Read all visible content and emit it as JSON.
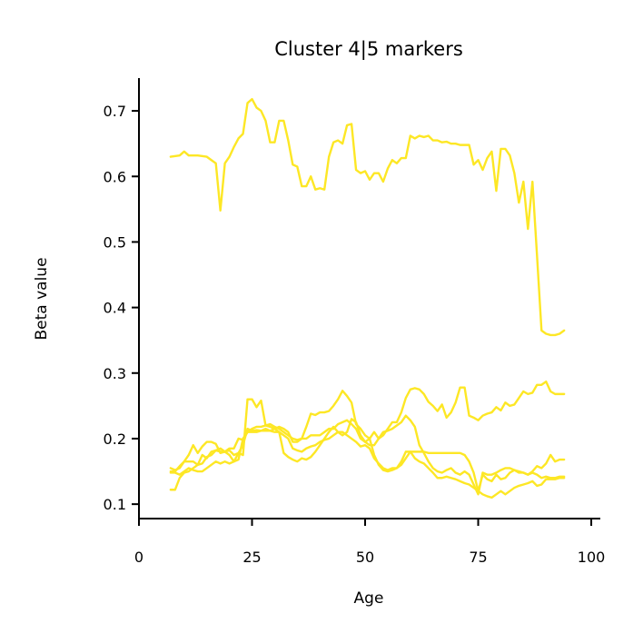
{
  "chart_data": {
    "type": "line",
    "title": "Cluster 4|5 markers",
    "xlabel": "Age",
    "ylabel": "Beta value",
    "xlim": [
      0,
      102
    ],
    "ylim": [
      0.078,
      0.75
    ],
    "xticks": [
      0,
      25,
      50,
      75,
      100
    ],
    "xtick_labels": [
      "0",
      "25",
      "50",
      "75",
      "100"
    ],
    "yticks": [
      0.1,
      0.2,
      0.3,
      0.4,
      0.5,
      0.6,
      0.7
    ],
    "ytick_labels": [
      "0.1",
      "0.2",
      "0.3",
      "0.4",
      "0.5",
      "0.6",
      "0.7"
    ],
    "grid": false,
    "line_color": "#fde725",
    "series": [
      {
        "x": [
          7,
          9,
          10,
          11,
          13,
          15,
          16,
          17,
          18,
          19,
          20,
          21,
          22,
          23,
          24,
          25,
          26,
          27,
          28,
          29,
          30,
          31,
          32,
          33,
          34,
          35,
          36,
          37,
          38,
          39,
          40,
          41,
          42,
          43,
          44,
          45,
          46,
          47,
          48,
          49,
          50,
          51,
          52,
          53,
          54,
          55,
          56,
          57,
          58,
          59,
          60,
          61,
          62,
          63,
          64,
          65,
          66,
          67,
          68,
          69,
          70,
          71,
          72,
          73,
          74,
          75,
          76,
          77,
          78,
          79,
          80,
          81,
          82,
          83,
          84,
          85,
          86,
          87,
          88,
          89,
          90,
          91,
          92,
          93,
          94
        ],
        "values": [
          0.63,
          0.632,
          0.638,
          0.632,
          0.632,
          0.63,
          0.625,
          0.62,
          0.548,
          0.62,
          0.63,
          0.645,
          0.658,
          0.665,
          0.712,
          0.718,
          0.705,
          0.7,
          0.685,
          0.652,
          0.652,
          0.685,
          0.685,
          0.655,
          0.618,
          0.615,
          0.585,
          0.585,
          0.6,
          0.58,
          0.582,
          0.58,
          0.63,
          0.652,
          0.655,
          0.65,
          0.678,
          0.68,
          0.61,
          0.605,
          0.608,
          0.595,
          0.605,
          0.605,
          0.592,
          0.612,
          0.625,
          0.62,
          0.628,
          0.628,
          0.662,
          0.658,
          0.662,
          0.66,
          0.662,
          0.655,
          0.655,
          0.652,
          0.653,
          0.65,
          0.65,
          0.648,
          0.648,
          0.648,
          0.618,
          0.625,
          0.61,
          0.628,
          0.638,
          0.578,
          0.642,
          0.642,
          0.632,
          0.605,
          0.56,
          0.592,
          0.52,
          0.592,
          0.48,
          0.365,
          0.36,
          0.358,
          0.358,
          0.36,
          0.365
        ]
      },
      {
        "x": [
          7,
          8,
          9,
          10,
          11,
          12,
          13,
          14,
          15,
          16,
          17,
          18,
          19,
          20,
          21,
          22,
          23,
          24,
          25,
          26,
          27,
          28,
          29,
          30,
          31,
          32,
          33,
          34,
          35,
          36,
          37,
          38,
          39,
          40,
          41,
          42,
          43,
          44,
          45,
          46,
          47,
          48,
          49,
          50,
          51,
          52,
          53,
          54,
          55,
          56,
          57,
          58,
          59,
          60,
          61,
          62,
          63,
          64,
          65,
          66,
          67,
          68,
          69,
          70,
          71,
          72,
          73,
          74,
          75,
          76,
          77,
          78,
          79,
          80,
          81,
          82,
          83,
          84,
          85,
          86,
          87,
          88,
          89,
          90,
          91,
          92,
          93,
          94
        ],
        "values": [
          0.155,
          0.152,
          0.155,
          0.165,
          0.175,
          0.19,
          0.178,
          0.188,
          0.195,
          0.195,
          0.192,
          0.178,
          0.18,
          0.175,
          0.165,
          0.178,
          0.175,
          0.26,
          0.26,
          0.248,
          0.258,
          0.22,
          0.222,
          0.218,
          0.215,
          0.21,
          0.205,
          0.2,
          0.198,
          0.2,
          0.218,
          0.238,
          0.236,
          0.24,
          0.24,
          0.242,
          0.25,
          0.26,
          0.273,
          0.265,
          0.255,
          0.222,
          0.215,
          0.205,
          0.2,
          0.21,
          0.2,
          0.205,
          0.215,
          0.225,
          0.225,
          0.24,
          0.262,
          0.275,
          0.277,
          0.275,
          0.268,
          0.256,
          0.25,
          0.242,
          0.252,
          0.232,
          0.24,
          0.255,
          0.278,
          0.278,
          0.235,
          0.232,
          0.228,
          0.235,
          0.238,
          0.24,
          0.248,
          0.243,
          0.255,
          0.25,
          0.252,
          0.262,
          0.272,
          0.268,
          0.27,
          0.282,
          0.282,
          0.287,
          0.272,
          0.268,
          0.268,
          0.268
        ]
      },
      {
        "x": [
          7,
          8,
          9,
          10,
          11,
          12,
          13,
          14,
          15,
          16,
          17,
          18,
          19,
          20,
          21,
          22,
          23,
          24,
          25,
          26,
          27,
          28,
          29,
          30,
          31,
          32,
          33,
          34,
          35,
          36,
          37,
          38,
          39,
          40,
          41,
          42,
          43,
          44,
          45,
          46,
          47,
          48,
          49,
          50,
          51,
          52,
          53,
          54,
          55,
          56,
          57,
          58,
          59,
          60,
          61,
          62,
          63,
          64,
          65,
          66,
          67,
          68,
          69,
          70,
          71,
          72,
          73,
          74,
          75,
          76,
          77,
          78,
          79,
          80,
          81,
          82,
          83,
          84,
          85,
          86,
          87,
          88,
          89,
          90,
          91,
          92,
          93,
          94
        ],
        "values": [
          0.122,
          0.122,
          0.14,
          0.148,
          0.15,
          0.155,
          0.16,
          0.175,
          0.17,
          0.18,
          0.182,
          0.185,
          0.18,
          0.185,
          0.185,
          0.2,
          0.198,
          0.21,
          0.215,
          0.218,
          0.218,
          0.22,
          0.218,
          0.215,
          0.21,
          0.178,
          0.172,
          0.168,
          0.165,
          0.17,
          0.168,
          0.172,
          0.18,
          0.19,
          0.2,
          0.21,
          0.218,
          0.21,
          0.205,
          0.21,
          0.23,
          0.225,
          0.205,
          0.195,
          0.2,
          0.175,
          0.16,
          0.152,
          0.15,
          0.152,
          0.155,
          0.165,
          0.18,
          0.18,
          0.18,
          0.18,
          0.18,
          0.178,
          0.178,
          0.178,
          0.178,
          0.178,
          0.178,
          0.178,
          0.178,
          0.175,
          0.165,
          0.148,
          0.12,
          0.145,
          0.138,
          0.135,
          0.145,
          0.138,
          0.14,
          0.148,
          0.152,
          0.148,
          0.148,
          0.145,
          0.15,
          0.158,
          0.155,
          0.162,
          0.175,
          0.165,
          0.168,
          0.168
        ]
      },
      {
        "x": [
          7,
          8,
          9,
          10,
          11,
          12,
          13,
          14,
          15,
          16,
          17,
          18,
          19,
          20,
          21,
          22,
          23,
          24,
          25,
          26,
          27,
          28,
          29,
          30,
          31,
          32,
          33,
          34,
          35,
          36,
          37,
          38,
          39,
          40,
          41,
          42,
          43,
          44,
          45,
          46,
          47,
          48,
          49,
          50,
          51,
          52,
          53,
          54,
          55,
          56,
          57,
          58,
          59,
          60,
          61,
          62,
          63,
          64,
          65,
          66,
          67,
          68,
          69,
          70,
          71,
          72,
          73,
          74,
          75,
          76,
          77,
          78,
          79,
          80,
          81,
          82,
          83,
          84,
          85,
          86,
          87,
          88,
          89,
          90,
          91,
          92,
          93,
          94
        ],
        "values": [
          0.15,
          0.15,
          0.158,
          0.165,
          0.165,
          0.165,
          0.16,
          0.162,
          0.172,
          0.175,
          0.182,
          0.18,
          0.18,
          0.182,
          0.175,
          0.178,
          0.19,
          0.215,
          0.212,
          0.213,
          0.212,
          0.215,
          0.212,
          0.215,
          0.218,
          0.215,
          0.21,
          0.195,
          0.195,
          0.2,
          0.2,
          0.205,
          0.205,
          0.205,
          0.21,
          0.215,
          0.215,
          0.222,
          0.225,
          0.228,
          0.222,
          0.215,
          0.2,
          0.195,
          0.19,
          0.19,
          0.2,
          0.21,
          0.212,
          0.215,
          0.22,
          0.225,
          0.235,
          0.228,
          0.218,
          0.19,
          0.178,
          0.165,
          0.155,
          0.15,
          0.148,
          0.152,
          0.155,
          0.148,
          0.145,
          0.15,
          0.145,
          0.13,
          0.115,
          0.148,
          0.145,
          0.145,
          0.148,
          0.152,
          0.155,
          0.155,
          0.152,
          0.15,
          0.148,
          0.145,
          0.148,
          0.145,
          0.14,
          0.142,
          0.14,
          0.14,
          0.142,
          0.142
        ]
      },
      {
        "x": [
          7,
          8,
          9,
          10,
          11,
          12,
          13,
          14,
          15,
          16,
          17,
          18,
          19,
          20,
          21,
          22,
          23,
          24,
          25,
          26,
          27,
          28,
          29,
          30,
          31,
          32,
          33,
          34,
          35,
          36,
          37,
          38,
          39,
          40,
          41,
          42,
          43,
          44,
          45,
          46,
          47,
          48,
          49,
          50,
          51,
          52,
          53,
          54,
          55,
          56,
          57,
          58,
          59,
          60,
          61,
          62,
          63,
          64,
          65,
          66,
          67,
          68,
          69,
          70,
          71,
          72,
          73,
          74,
          75,
          76,
          77,
          78,
          79,
          80,
          81,
          82,
          83,
          84,
          85,
          86,
          87,
          88,
          89,
          90,
          91,
          92,
          93,
          94
        ],
        "values": [
          0.148,
          0.148,
          0.145,
          0.15,
          0.155,
          0.152,
          0.15,
          0.15,
          0.155,
          0.16,
          0.165,
          0.162,
          0.165,
          0.162,
          0.165,
          0.168,
          0.2,
          0.21,
          0.21,
          0.21,
          0.212,
          0.212,
          0.212,
          0.21,
          0.21,
          0.205,
          0.2,
          0.185,
          0.182,
          0.18,
          0.185,
          0.188,
          0.19,
          0.195,
          0.198,
          0.2,
          0.205,
          0.21,
          0.21,
          0.205,
          0.2,
          0.195,
          0.188,
          0.19,
          0.185,
          0.17,
          0.162,
          0.155,
          0.152,
          0.155,
          0.155,
          0.16,
          0.17,
          0.18,
          0.17,
          0.165,
          0.162,
          0.155,
          0.148,
          0.14,
          0.14,
          0.142,
          0.14,
          0.138,
          0.135,
          0.132,
          0.13,
          0.125,
          0.12,
          0.115,
          0.112,
          0.11,
          0.115,
          0.12,
          0.115,
          0.12,
          0.125,
          0.128,
          0.13,
          0.132,
          0.135,
          0.128,
          0.13,
          0.138,
          0.138,
          0.138,
          0.14,
          0.14
        ]
      }
    ]
  }
}
